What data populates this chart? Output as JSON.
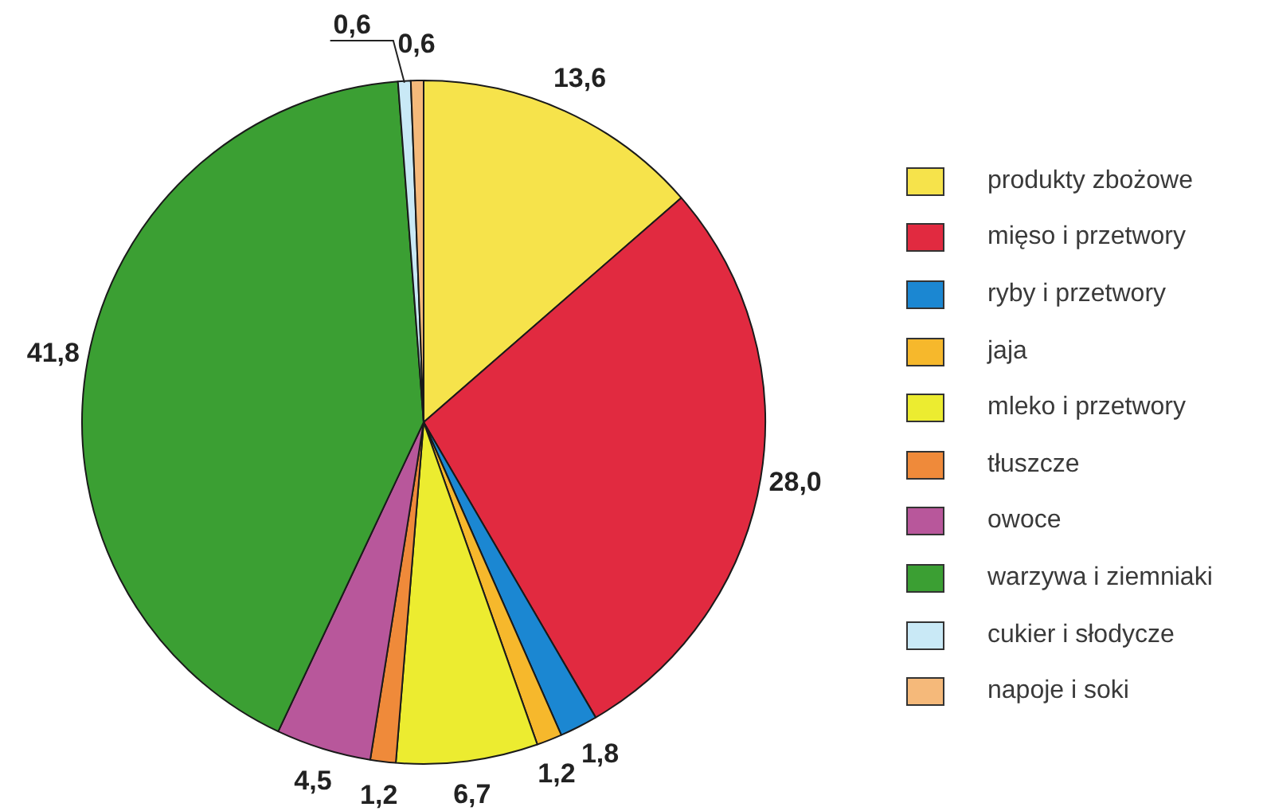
{
  "chart_data": {
    "type": "pie",
    "categories": [
      "produkty zbożowe",
      "mięso i przetwory",
      "ryby i przetwory",
      "jaja",
      "mleko i przetwory",
      "tłuszcze",
      "owoce",
      "warzywa i ziemniaki",
      "cukier i słodycze",
      "napoje i soki"
    ],
    "values": [
      13.6,
      28.0,
      1.8,
      1.2,
      6.7,
      1.2,
      4.5,
      41.8,
      0.6,
      0.6
    ],
    "colors": [
      "#f6e34b",
      "#e12a40",
      "#1b87d2",
      "#f6b82c",
      "#ecec30",
      "#ef8a3a",
      "#b8579b",
      "#3b9f33",
      "#c9e9f6",
      "#f5b97a"
    ],
    "value_labels": [
      "13,6",
      "28,0",
      "1,8",
      "1,2",
      "6,7",
      "1,2",
      "4,5",
      "41,8",
      "0,6",
      "0,6"
    ],
    "legend": "right"
  }
}
